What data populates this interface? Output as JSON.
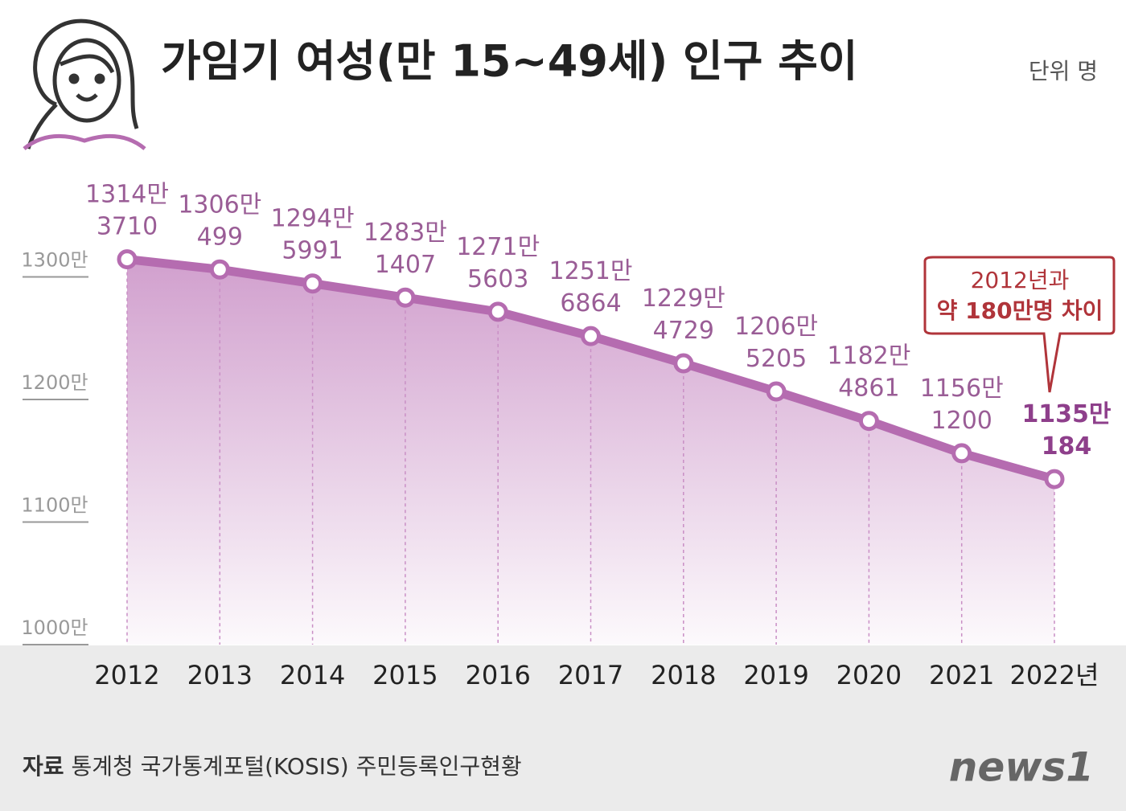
{
  "chart_data": {
    "type": "line",
    "title": "가임기 여성(만 15~49세) 인구 추이",
    "unit": "단위 명",
    "categories": [
      "2012",
      "2013",
      "2014",
      "2015",
      "2016",
      "2017",
      "2018",
      "2019",
      "2020",
      "2021",
      "2022년"
    ],
    "series": [
      {
        "color": "#b56cb0",
        "values": [
          13143710,
          13060499,
          12945991,
          12831407,
          12715603,
          12516864,
          12294729,
          12065205,
          11824861,
          11561200,
          11350184
        ],
        "value_labels": [
          "1314만 3710",
          "1306만 499",
          "1294만 5991",
          "1283만 1407",
          "1271만 5603",
          "1251만 6864",
          "1229만 4729",
          "1206만 5205",
          "1182만 4861",
          "1156만 1200",
          "1135만 184"
        ]
      }
    ],
    "ylim": [
      10000000,
      14000000
    ],
    "yticks": [
      {
        "value": 10000000,
        "label": "1000만"
      },
      {
        "value": 11000000,
        "label": "1100만"
      },
      {
        "value": 12000000,
        "label": "1200만"
      },
      {
        "value": 13000000,
        "label": "1300만"
      }
    ],
    "annotation": [
      "2012년과",
      "약 180만명 차이"
    ],
    "source_label": "자료",
    "source": "통계청 국가통계포털(KOSIS) 주민등록인구현황",
    "logo": "news1"
  }
}
